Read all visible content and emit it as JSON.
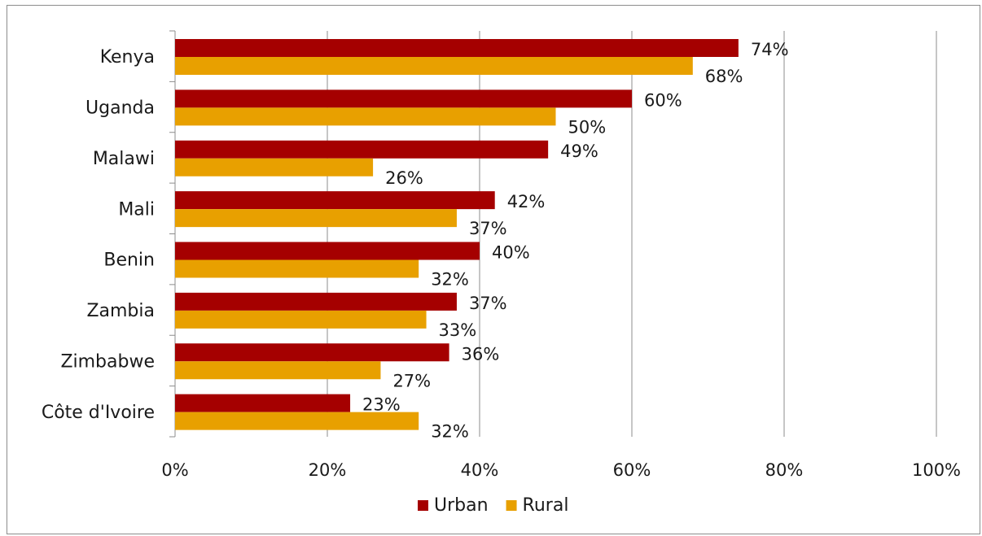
{
  "chart_data": {
    "type": "bar",
    "orientation": "horizontal",
    "categories": [
      "Kenya",
      "Uganda",
      "Malawi",
      "Mali",
      "Benin",
      "Zambia",
      "Zimbabwe",
      "Côte d'Ivoire"
    ],
    "series": [
      {
        "name": "Urban",
        "color": "#a50000",
        "values": [
          74,
          60,
          49,
          42,
          40,
          37,
          36,
          23
        ]
      },
      {
        "name": "Rural",
        "color": "#e8a000",
        "values": [
          68,
          50,
          26,
          37,
          32,
          33,
          27,
          32
        ]
      }
    ],
    "value_suffix": "%",
    "xlim": [
      0,
      100
    ],
    "x_ticks": [
      0,
      20,
      40,
      60,
      80,
      100
    ],
    "x_tick_labels": [
      "0%",
      "20%",
      "40%",
      "60%",
      "80%",
      "100%"
    ],
    "grid": true,
    "legend_position": "bottom",
    "title": "",
    "xlabel": "",
    "ylabel": ""
  }
}
